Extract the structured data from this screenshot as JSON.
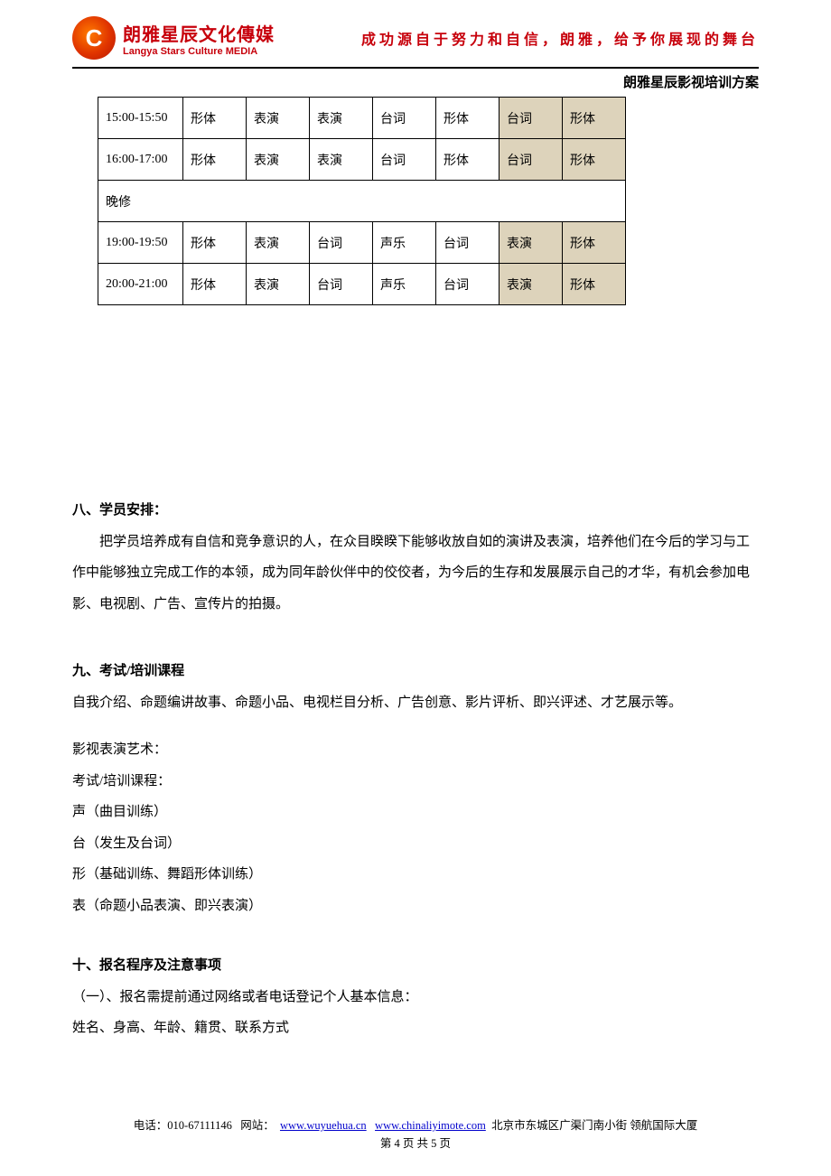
{
  "header": {
    "logo_cn": "朗雅星辰文化傳媒",
    "logo_en": "Langya Stars Culture MEDIA",
    "slogan": "成功源自于努力和自信，朗雅，给予你展现的舞台"
  },
  "doc_title": "朗雅星辰影视培训方案",
  "schedule": {
    "col_widths": {
      "time": 94,
      "day": 70
    },
    "shaded_color": "#ddd3bb",
    "border_color": "#000000",
    "rows": [
      {
        "time": "15:00-15:50",
        "cells": [
          "形体",
          "表演",
          "表演",
          "台词",
          "形体",
          "台词",
          "形体"
        ],
        "shaded": [
          false,
          false,
          false,
          false,
          false,
          true,
          true
        ]
      },
      {
        "time": "16:00-17:00",
        "cells": [
          "形体",
          "表演",
          "表演",
          "台词",
          "形体",
          "台词",
          "形体"
        ],
        "shaded": [
          false,
          false,
          false,
          false,
          false,
          true,
          true
        ]
      },
      {
        "span": true,
        "label": "晚修"
      },
      {
        "time": "19:00-19:50",
        "cells": [
          "形体",
          "表演",
          "台词",
          "声乐",
          "台词",
          "表演",
          "形体"
        ],
        "shaded": [
          false,
          false,
          false,
          false,
          false,
          true,
          true
        ]
      },
      {
        "time": "20:00-21:00",
        "cells": [
          "形体",
          "表演",
          "台词",
          "声乐",
          "台词",
          "表演",
          "形体"
        ],
        "shaded": [
          false,
          false,
          false,
          false,
          false,
          true,
          true
        ]
      }
    ]
  },
  "section8": {
    "heading": "八、学员安排：",
    "body": "把学员培养成有自信和竞争意识的人，在众目睽睽下能够收放自如的演讲及表演，培养他们在今后的学习与工作中能够独立完成工作的本领，成为同年龄伙伴中的佼佼者，为今后的生存和发展展示自己的才华，有机会参加电影、电视剧、广告、宣传片的拍摄。"
  },
  "section9": {
    "heading": "九、考试/培训课程",
    "line1": "自我介绍、命题编讲故事、命题小品、电视栏目分析、广告创意、影片评析、即兴评述、才艺展示等。",
    "sub_heading": "影视表演艺术：",
    "sub_label": "考试/培训课程：",
    "items": [
      "声（曲目训练）",
      "台（发生及台词）",
      "形（基础训练、舞蹈形体训练）",
      "表（命题小品表演、即兴表演）"
    ]
  },
  "section10": {
    "heading": "十、报名程序及注意事项",
    "line1": "（一）、报名需提前通过网络或者电话登记个人基本信息：",
    "line2": "姓名、身高、年龄、籍贯、联系方式"
  },
  "footer": {
    "tel_label": "电话：",
    "tel": "010-67111146",
    "site_label": "网站：",
    "url1": "www.wuyuehua.cn",
    "url2": "www.chinaliyimote.com",
    "addr": "北京市东城区广渠门南小街 领航国际大厦",
    "pager": "第 4 页 共 5 页"
  }
}
